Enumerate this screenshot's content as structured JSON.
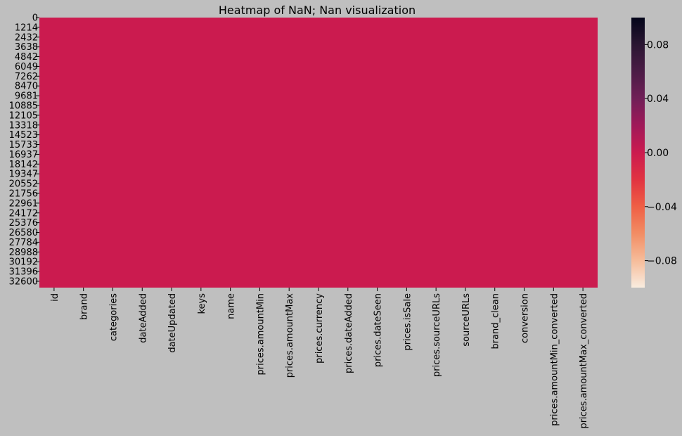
{
  "chart_data": {
    "type": "heatmap",
    "title": "Heatmap of NaN; Nan visualization",
    "xlabel": "",
    "ylabel": "",
    "columns": [
      "id",
      "brand",
      "categories",
      "dateAdded",
      "dateUpdated",
      "keys",
      "name",
      "prices.amountMin",
      "prices.amountMax",
      "prices.currency",
      "prices.dateAdded",
      "prices.dateSeen",
      "prices.isSale",
      "prices.sourceURLs",
      "sourceURLs",
      "brand_clean",
      "conversion",
      "prices.amountMin_converted",
      "prices.amountMax_converted"
    ],
    "row_tick_labels": [
      "0",
      "1214",
      "2432",
      "3638",
      "4842",
      "6049",
      "7262",
      "8470",
      "9681",
      "10885",
      "12105",
      "13318",
      "14523",
      "15733",
      "16937",
      "18142",
      "19347",
      "20552",
      "21756",
      "22961",
      "24172",
      "25376",
      "26580",
      "27784",
      "28988",
      "30192",
      "31396",
      "32600"
    ],
    "row_range": [
      0,
      33495
    ],
    "cell_value": 0.0,
    "all_values": "0.00 (no NaN values in any column)",
    "colorbar": {
      "vmin": -0.1,
      "vmax": 0.1,
      "ticks": [
        0.08,
        0.04,
        0.0,
        -0.04,
        -0.08
      ],
      "tick_labels": [
        "0.08",
        "0.04",
        "0.00",
        "−0.04",
        "−0.08"
      ],
      "colormap": "rocket_r",
      "stops": [
        "#f9ecdf",
        "#f6bc9a",
        "#f28d64",
        "#ef5f45",
        "#e13341",
        "#cb1b4f",
        "#a01959",
        "#701f57",
        "#4b1c46",
        "#2a1632",
        "#03051a"
      ]
    },
    "colors": {
      "background": "#bfbfbf",
      "cell_fill": "#cb1b4f"
    },
    "grid": false
  }
}
